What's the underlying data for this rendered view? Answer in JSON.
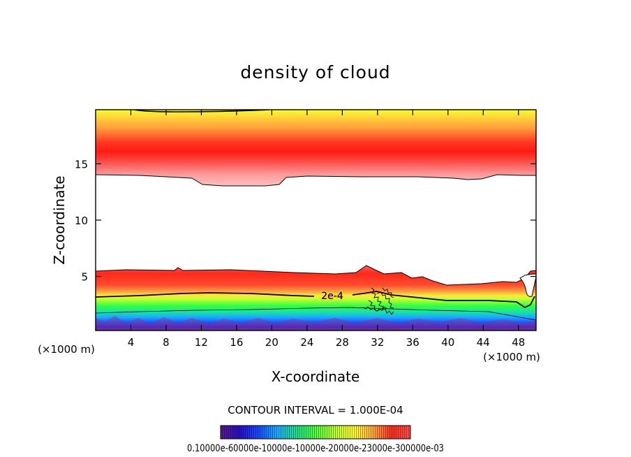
{
  "chart_data": {
    "type": "heatmap",
    "title": "density of cloud",
    "xlabel": "X-coordinate",
    "ylabel": "Z-coordinate",
    "x_unit": "(×1000 m)",
    "x_unit_right": "(×1000 m)",
    "xlim": [
      0,
      50
    ],
    "ylim": [
      0.2,
      19.8
    ],
    "x_ticks": [
      4,
      8,
      12,
      16,
      20,
      24,
      28,
      32,
      36,
      40,
      44,
      48
    ],
    "y_ticks": [
      5,
      10,
      15
    ],
    "contour_interval_text": "CONTOUR INTERVAL = 1.000E-04",
    "contour_label": "2e-4",
    "colorbar_labels_text": "0.10000e-60000e-10000e-10000e-20000e-23000e-300000e-03",
    "colormap": [
      "#5a1a8a",
      "#2a10c8",
      "#1a4cff",
      "#19b0ff",
      "#1fe08a",
      "#50ff40",
      "#b8ff30",
      "#ffff30",
      "#ffb040",
      "#ff3020",
      "#ff1010"
    ],
    "bands": [
      {
        "name": "upper-cloud",
        "z_bottom_left": 14.0,
        "z_peak": 15.9,
        "z_top": 19.8
      },
      {
        "name": "lower-cloud",
        "z_bottom": 0.5,
        "z_top_left": 5.4,
        "z_2e-4_contour": 3.2
      }
    ]
  }
}
